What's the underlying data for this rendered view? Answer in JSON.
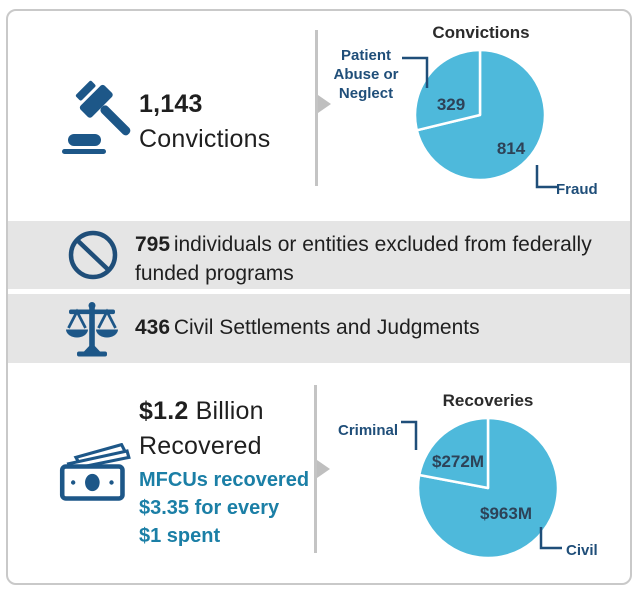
{
  "colors": {
    "pie_blue": "#4EB9DB",
    "navy_label": "#1F4E79",
    "icon_navy": "#1D5788",
    "teal_text": "#1B7FA6",
    "band_gray": "#E5E5E5",
    "divider_gray": "#C4C4C4"
  },
  "rows": {
    "convictions": {
      "value": "1,143",
      "label": "Convictions"
    },
    "exclusions": {
      "value": "795",
      "text_line1": "individuals or entities excluded from federally",
      "text_line2": "funded programs"
    },
    "settlements": {
      "value": "436",
      "text": "Civil Settlements and Judgments"
    },
    "recoveries": {
      "value": "$1.2",
      "unit": "Billion",
      "label": "Recovered",
      "sub_line1": "MFCUs recovered",
      "sub_line2": "$3.35 for every",
      "sub_line3": "$1 spent"
    }
  },
  "chart_data": [
    {
      "type": "pie",
      "title": "Convictions",
      "total": 1143,
      "color": "#4EB9DB",
      "layout": "starts at 12 o'clock, clockwise, large slice first, white slice borders",
      "slices": [
        {
          "label": "Fraud",
          "value": 814,
          "display": "814"
        },
        {
          "label": "Patient Abuse or Neglect",
          "value": 329,
          "display": "329"
        }
      ]
    },
    {
      "type": "pie",
      "title": "Recoveries",
      "total": 1235,
      "color": "#4EB9DB",
      "layout": "starts at 12 o'clock, clockwise, large slice first, white slice borders",
      "slices": [
        {
          "label": "Civil",
          "value": 963,
          "display": "$963M"
        },
        {
          "label": "Criminal",
          "value": 272,
          "display": "$272M"
        }
      ]
    }
  ]
}
